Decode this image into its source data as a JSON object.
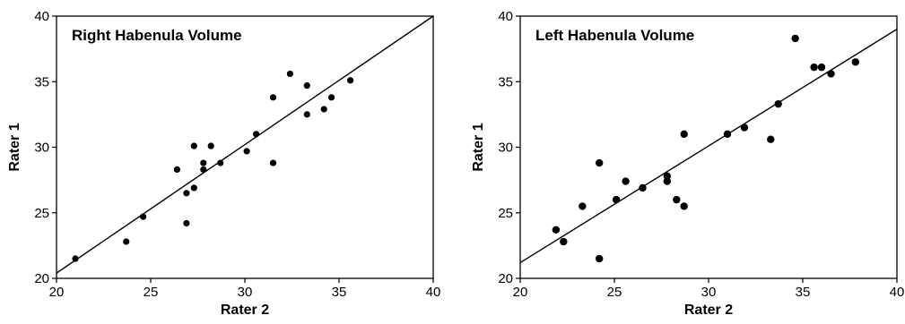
{
  "chart_data": [
    {
      "type": "scatter",
      "title": "Right Habenula Volume",
      "xlabel": "Rater 2",
      "ylabel": "Rater 1",
      "xlim": [
        20,
        40
      ],
      "ylim": [
        20,
        40
      ],
      "xticks": [
        "20",
        "25",
        "30",
        "35",
        "40"
      ],
      "yticks": [
        "20",
        "25",
        "30",
        "35",
        "40"
      ],
      "grid": false,
      "legend": "none",
      "reference_line": {
        "from": [
          20,
          20.4
        ],
        "to": [
          40,
          40
        ]
      },
      "points": [
        [
          21.0,
          21.5
        ],
        [
          23.7,
          22.8
        ],
        [
          24.6,
          24.7
        ],
        [
          26.4,
          28.3
        ],
        [
          26.9,
          24.2
        ],
        [
          26.9,
          26.5
        ],
        [
          27.3,
          26.9
        ],
        [
          27.3,
          30.1
        ],
        [
          27.8,
          28.3
        ],
        [
          27.8,
          28.8
        ],
        [
          28.2,
          30.1
        ],
        [
          28.7,
          28.8
        ],
        [
          30.1,
          29.7
        ],
        [
          30.6,
          31.0
        ],
        [
          31.5,
          28.8
        ],
        [
          31.5,
          33.8
        ],
        [
          32.4,
          35.6
        ],
        [
          33.3,
          32.5
        ],
        [
          33.3,
          34.7
        ],
        [
          34.2,
          32.9
        ],
        [
          34.6,
          33.8
        ],
        [
          35.6,
          35.1
        ]
      ]
    },
    {
      "type": "scatter",
      "title": "Left Habenula Volume",
      "xlabel": "Rater 2",
      "ylabel": "Rater 1",
      "xlim": [
        20,
        40
      ],
      "ylim": [
        20,
        40
      ],
      "xticks": [
        "20",
        "25",
        "30",
        "35",
        "40"
      ],
      "yticks": [
        "20",
        "25",
        "30",
        "35",
        "40"
      ],
      "grid": false,
      "legend": "none",
      "reference_line": {
        "from": [
          20,
          21.2
        ],
        "to": [
          40,
          39.0
        ]
      },
      "points": [
        [
          21.9,
          23.7
        ],
        [
          22.3,
          22.8
        ],
        [
          23.3,
          25.5
        ],
        [
          24.2,
          21.5
        ],
        [
          24.2,
          28.8
        ],
        [
          25.1,
          26.0
        ],
        [
          25.6,
          27.4
        ],
        [
          26.5,
          26.9
        ],
        [
          27.8,
          27.4
        ],
        [
          27.8,
          27.8
        ],
        [
          28.3,
          26.0
        ],
        [
          28.7,
          25.5
        ],
        [
          28.7,
          31.0
        ],
        [
          31.0,
          31.0
        ],
        [
          31.9,
          31.5
        ],
        [
          33.3,
          30.6
        ],
        [
          33.7,
          33.3
        ],
        [
          34.6,
          38.3
        ],
        [
          35.6,
          36.1
        ],
        [
          36.0,
          36.1
        ],
        [
          36.5,
          35.6
        ],
        [
          37.8,
          36.5
        ]
      ]
    }
  ]
}
